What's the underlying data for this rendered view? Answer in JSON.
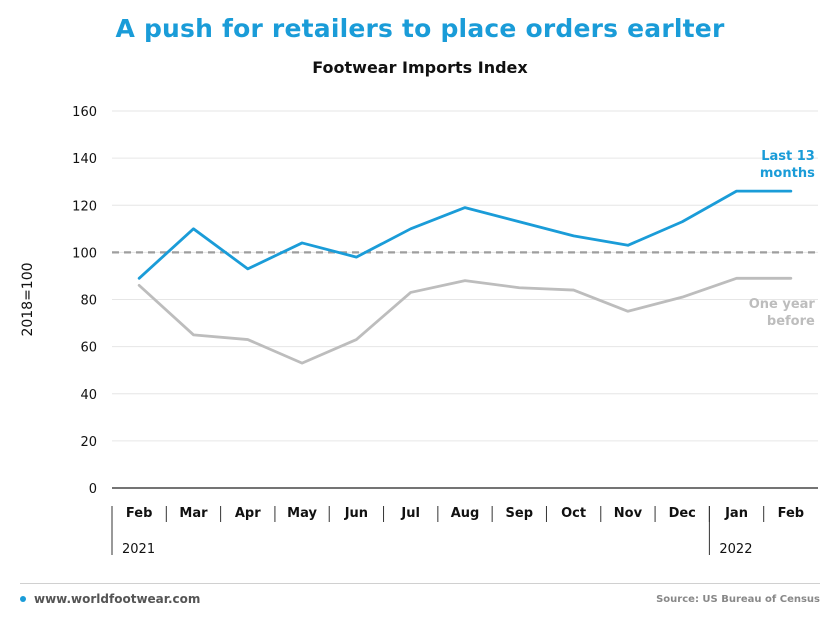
{
  "title": "A push for retailers to place orders earlter",
  "subtitle": "Footwear Imports Index",
  "footer": {
    "website": "www.worldfootwear.com",
    "source": "Source: US Bureau of Census"
  },
  "colors": {
    "accent": "#1a9cd8",
    "prior": "#bdbdbd",
    "reference": "#9e9e9e"
  },
  "chart_data": {
    "type": "line",
    "ylabel": "2018=100",
    "ylim": [
      0,
      160
    ],
    "yticks": [
      0,
      20,
      40,
      60,
      80,
      100,
      120,
      140,
      160
    ],
    "categories": [
      "Feb",
      "Mar",
      "Apr",
      "May",
      "Jun",
      "Jul",
      "Aug",
      "Sep",
      "Oct",
      "Nov",
      "Dec",
      "Jan",
      "Feb"
    ],
    "year_labels": [
      {
        "label": "2021",
        "start": 0,
        "end": 10
      },
      {
        "label": "2022",
        "start": 11,
        "end": 12
      }
    ],
    "reference_line": 100,
    "series": [
      {
        "name": "Last 13 months",
        "label_lines": [
          "Last 13",
          "months"
        ],
        "color": "#1a9cd8",
        "values": [
          89,
          110,
          93,
          104,
          98,
          110,
          119,
          113,
          107,
          103,
          113,
          126,
          126
        ]
      },
      {
        "name": "One year before",
        "label_lines": [
          "One year",
          "before"
        ],
        "color": "#bdbdbd",
        "values": [
          86,
          65,
          63,
          53,
          63,
          83,
          88,
          85,
          84,
          75,
          81,
          89,
          89
        ]
      }
    ],
    "grid": true,
    "legend": "inline-right"
  }
}
